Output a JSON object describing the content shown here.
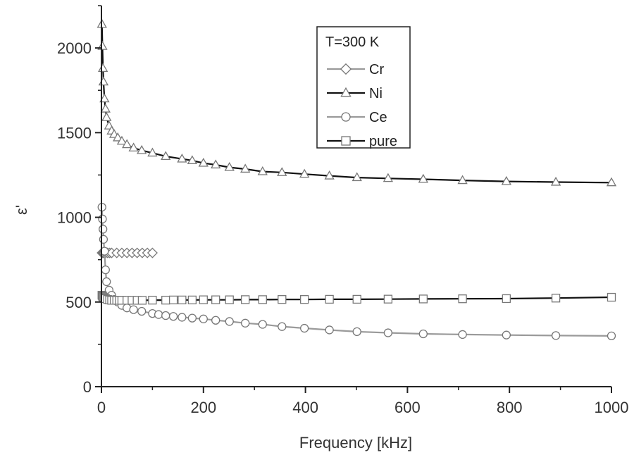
{
  "chart_data": {
    "type": "scatter",
    "xlabel": "Frequency [kHz]",
    "ylabel": "ε'",
    "xlim": [
      0,
      1000
    ],
    "ylim": [
      0,
      2250
    ],
    "xticks": [
      0,
      200,
      400,
      600,
      800,
      1000
    ],
    "yticks": [
      0,
      500,
      1000,
      1500,
      2000
    ],
    "grid": false,
    "legend": {
      "title": "T=300 K",
      "position": "top-center"
    },
    "series": [
      {
        "name": "Cr",
        "marker": "diamond",
        "line_color": "#9a9a9a",
        "x": [
          1,
          2,
          3,
          5,
          8,
          12,
          16,
          20,
          30,
          40,
          50,
          60,
          70,
          80,
          90,
          100
        ],
        "y": [
          790,
          790,
          790,
          790,
          790,
          790,
          790,
          790,
          790,
          790,
          790,
          790,
          790,
          790,
          790,
          790
        ]
      },
      {
        "name": "Ni",
        "marker": "triangle",
        "line_color": "#111111",
        "x": [
          1,
          2,
          3,
          4,
          6,
          8,
          10,
          15,
          20,
          25,
          32,
          40,
          50,
          63,
          79,
          100,
          126,
          158,
          200,
          251,
          316,
          398,
          501,
          631,
          794,
          1000,
          282,
          354,
          447,
          562,
          708,
          891,
          178,
          224
        ],
        "y": [
          2140,
          2010,
          1880,
          1800,
          1700,
          1640,
          1590,
          1540,
          1510,
          1490,
          1470,
          1450,
          1430,
          1410,
          1395,
          1380,
          1360,
          1345,
          1320,
          1295,
          1270,
          1255,
          1235,
          1225,
          1212,
          1205,
          1285,
          1265,
          1245,
          1230,
          1218,
          1208,
          1335,
          1310
        ]
      },
      {
        "name": "Ce",
        "marker": "circle",
        "line_color": "#9a9a9a",
        "x": [
          1,
          2,
          3,
          4,
          6,
          8,
          10,
          15,
          20,
          25,
          32,
          40,
          50,
          63,
          79,
          100,
          126,
          158,
          200,
          251,
          316,
          398,
          501,
          631,
          794,
          1000,
          112,
          141,
          178,
          224,
          282,
          354,
          447,
          562,
          708,
          891
        ],
        "y": [
          1060,
          990,
          930,
          870,
          800,
          690,
          620,
          570,
          540,
          515,
          500,
          480,
          465,
          455,
          445,
          432,
          420,
          410,
          400,
          385,
          368,
          345,
          325,
          312,
          305,
          300,
          426,
          415,
          405,
          392,
          375,
          355,
          335,
          318,
          308,
          302
        ]
      },
      {
        "name": "pure",
        "marker": "square",
        "line_color": "#111111",
        "x": [
          1,
          2,
          3,
          5,
          8,
          12,
          16,
          20,
          25,
          30,
          35,
          40,
          50,
          60,
          70,
          80,
          100,
          126,
          158,
          200,
          251,
          316,
          398,
          501,
          631,
          794,
          1000,
          141,
          178,
          224,
          282,
          354,
          447,
          562,
          708,
          891
        ],
        "y": [
          540,
          535,
          530,
          525,
          520,
          515,
          512,
          510,
          510,
          510,
          510,
          510,
          510,
          510,
          510,
          510,
          511,
          511,
          512,
          513,
          513,
          514,
          515,
          516,
          518,
          520,
          528,
          512,
          512,
          513,
          514,
          515,
          516,
          517,
          519,
          523
        ]
      }
    ]
  }
}
